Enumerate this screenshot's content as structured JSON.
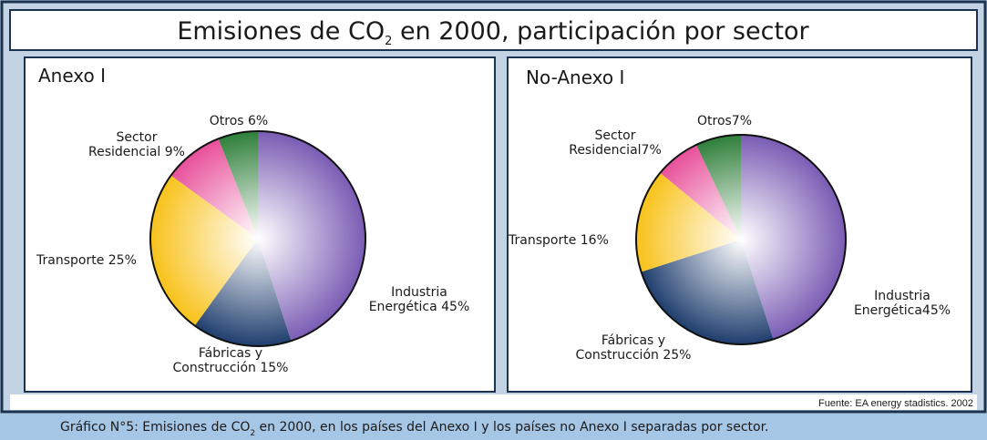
{
  "header": {
    "title": [
      "Emisiones de CO",
      "2",
      " en 2000, participación por sector"
    ]
  },
  "source": "Fuente: EA energy stadistics. 2002",
  "caption": [
    "Gráfico N°5: Emisiones de CO",
    "2",
    " en 2000, en los países del Anexo I y los países no Anexo I separadas por sector."
  ],
  "chart_data": [
    {
      "type": "pie",
      "title": "Anexo I",
      "labels": [
        [
          "Industria",
          "Energética 45%"
        ],
        [
          "Fábricas y",
          "Construcción 15%"
        ],
        [
          "Transporte 25%"
        ],
        [
          "Sector",
          "Residencial 9%"
        ],
        [
          "Otros 6%"
        ]
      ],
      "values": [
        45,
        15,
        25,
        9,
        6
      ],
      "colors": [
        "#7a5cb4",
        "#1f3e6e",
        "#f8c21a",
        "#e8509a",
        "#2f7f3a"
      ]
    },
    {
      "type": "pie",
      "title": "No-Anexo I",
      "labels": [
        [
          "Industria",
          "Energética45%"
        ],
        [
          "Fábricas y",
          "Construcción 25%"
        ],
        [
          "Transporte 16%"
        ],
        [
          "Sector",
          "Residencial7%"
        ],
        [
          "Otros7%"
        ]
      ],
      "values": [
        45,
        25,
        16,
        7,
        7
      ],
      "colors": [
        "#7a5cb4",
        "#1f3e6e",
        "#f8c21a",
        "#e8509a",
        "#2f7f3a"
      ]
    }
  ]
}
